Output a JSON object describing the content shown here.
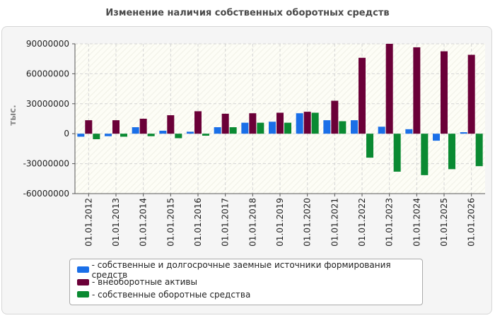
{
  "chart_data": {
    "type": "bar",
    "title": "Изменение наличия собственных оборотных средств",
    "ylabel": "тыс.",
    "xlabel": "",
    "categories": [
      "01.01.2012",
      "01.01.2013",
      "01.01.2014",
      "01.01.2015",
      "01.01.2016",
      "01.01.2017",
      "01.01.2018",
      "01.01.2019",
      "01.01.2020",
      "01.01.2021",
      "01.01.2022",
      "01.01.2023",
      "01.01.2024",
      "01.01.2025",
      "01.01.2026"
    ],
    "ylim": [
      -60000000,
      90000000
    ],
    "yticks": [
      90000000,
      60000000,
      30000000,
      0,
      -30000000,
      -60000000
    ],
    "ytick_labels": [
      "90000000",
      "60000000",
      "30000000",
      "0",
      "-30000000",
      "-60000000"
    ],
    "grid": true,
    "legend_position": "bottom",
    "series": [
      {
        "name": "- собственные и долгосрочные заемные источники формирования средств",
        "color": "#1a6fe8",
        "values": [
          -3000000,
          -2500000,
          6500000,
          3000000,
          2000000,
          6500000,
          11000000,
          12000000,
          20500000,
          13500000,
          13500000,
          7000000,
          4500000,
          -7000000,
          1500000
        ]
      },
      {
        "name": "- внеоборотные активы",
        "color": "#6b0038",
        "values": [
          13500000,
          13500000,
          15000000,
          18500000,
          22500000,
          20000000,
          20500000,
          21000000,
          22000000,
          33000000,
          76000000,
          90000000,
          86500000,
          82500000,
          79000000
        ]
      },
      {
        "name": "- собственные оборотные средства",
        "color": "#0a8a32",
        "values": [
          -5500000,
          -3000000,
          -2500000,
          -4500000,
          -2000000,
          6500000,
          11000000,
          11000000,
          21000000,
          12500000,
          -24000000,
          -38000000,
          -41500000,
          -35500000,
          -32500000
        ]
      }
    ]
  }
}
